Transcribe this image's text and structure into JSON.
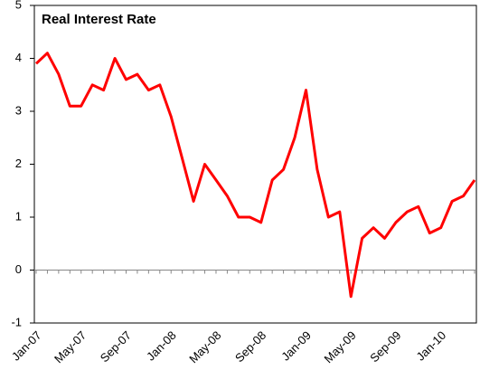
{
  "chart_data": {
    "type": "line",
    "title": "Real Interest Rate",
    "categories": [
      "Jan-07",
      null,
      null,
      null,
      "May-07",
      null,
      null,
      null,
      "Sep-07",
      null,
      null,
      null,
      "Jan-08",
      null,
      null,
      null,
      "May-08",
      null,
      null,
      null,
      "Sep-08",
      null,
      null,
      null,
      "Jan-09",
      null,
      null,
      null,
      "May-09",
      null,
      null,
      null,
      "Sep-09",
      null,
      null,
      null,
      "Jan-10",
      null,
      null,
      null
    ],
    "values": [
      3.9,
      4.1,
      3.7,
      3.1,
      3.1,
      3.5,
      3.4,
      4.0,
      3.6,
      3.7,
      3.4,
      3.5,
      2.9,
      2.1,
      1.3,
      2.0,
      1.7,
      1.4,
      1.0,
      1.0,
      0.9,
      1.7,
      1.9,
      2.5,
      3.4,
      1.9,
      1.0,
      1.1,
      -0.5,
      0.6,
      0.8,
      0.6,
      0.9,
      1.1,
      1.2,
      0.7,
      0.8,
      1.3,
      1.4,
      1.7
    ],
    "color": "#ff0000",
    "ylim": [
      -1,
      5
    ],
    "yticks": [
      -1,
      0,
      1,
      2,
      3,
      4,
      5
    ],
    "grid": false
  }
}
